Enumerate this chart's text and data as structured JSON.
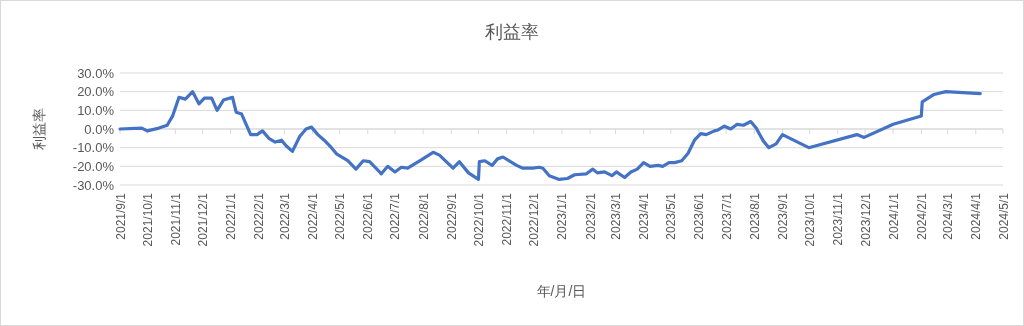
{
  "chart_data": {
    "type": "line",
    "title": "利益率",
    "xlabel": "年/月/日",
    "ylabel": "利益率",
    "x": [
      "2021-09-01",
      "2021-09-25",
      "2021-10-01",
      "2021-10-14",
      "2021-10-23",
      "2021-10-29",
      "2021-11-05",
      "2021-11-12",
      "2021-11-20",
      "2021-11-27",
      "2021-12-03",
      "2021-12-11",
      "2021-12-17",
      "2021-12-24",
      "2022-01-03",
      "2022-01-07",
      "2022-01-13",
      "2022-01-23",
      "2022-01-30",
      "2022-02-05",
      "2022-02-12",
      "2022-02-19",
      "2022-02-26",
      "2022-03-03",
      "2022-03-10",
      "2022-03-18",
      "2022-03-25",
      "2022-03-31",
      "2022-04-07",
      "2022-04-14",
      "2022-04-22",
      "2022-04-28",
      "2022-05-10",
      "2022-05-19",
      "2022-05-27",
      "2022-06-03",
      "2022-06-10",
      "2022-06-16",
      "2022-06-23",
      "2022-07-01",
      "2022-07-08",
      "2022-07-15",
      "2022-07-30",
      "2022-08-12",
      "2022-08-19",
      "2022-09-03",
      "2022-09-10",
      "2022-09-20",
      "2022-10-01",
      "2022-10-02",
      "2022-10-08",
      "2022-10-16",
      "2022-10-22",
      "2022-10-28",
      "2022-11-12",
      "2022-11-19",
      "2022-11-30",
      "2022-12-07",
      "2022-12-11",
      "2022-12-18",
      "2022-12-29",
      "2023-01-07",
      "2023-01-15",
      "2023-01-28",
      "2023-02-04",
      "2023-02-09",
      "2023-02-17",
      "2023-02-25",
      "2023-03-02",
      "2023-03-11",
      "2023-03-18",
      "2023-03-25",
      "2023-04-01",
      "2023-04-08",
      "2023-04-17",
      "2023-04-22",
      "2023-04-29",
      "2023-05-05",
      "2023-05-13",
      "2023-05-20",
      "2023-05-27",
      "2023-06-03",
      "2023-06-09",
      "2023-06-18",
      "2023-06-22",
      "2023-06-29",
      "2023-07-06",
      "2023-07-13",
      "2023-07-20",
      "2023-07-28",
      "2023-08-03",
      "2023-08-11",
      "2023-08-17",
      "2023-08-25",
      "2023-09-01",
      "2023-09-30",
      "2023-11-22",
      "2023-11-30",
      "2024-01-01",
      "2024-02-01",
      "2024-02-02",
      "2024-02-15",
      "2024-02-28",
      "2024-04-06"
    ],
    "series": [
      {
        "color": "#4472c4",
        "values": [
          0,
          0.5,
          -1,
          0.5,
          2,
          7,
          17,
          16,
          20,
          13.5,
          16.5,
          16.5,
          10,
          15.5,
          17,
          9,
          8,
          -3,
          -3,
          -1,
          -5,
          -7,
          -6,
          -9,
          -12,
          -4,
          0,
          1,
          -3,
          -6,
          -10,
          -13.5,
          -17,
          -21.5,
          -17,
          -17.5,
          -21,
          -24,
          -20,
          -23,
          -20.5,
          -21,
          -16.5,
          -12.5,
          -14,
          -21,
          -17.5,
          -23.5,
          -27,
          -17.5,
          -17,
          -19.5,
          -16,
          -15,
          -19.5,
          -21,
          -21,
          -20.5,
          -21,
          -25,
          -27,
          -26.5,
          -24.5,
          -24,
          -21.5,
          -23.5,
          -23,
          -25,
          -23,
          -26,
          -23,
          -21.5,
          -18,
          -20,
          -19.5,
          -20,
          -18,
          -18,
          -17,
          -13,
          -6,
          -2.5,
          -3,
          -1,
          -0.5,
          1.5,
          0,
          2.5,
          2,
          4,
          0.5,
          -6.5,
          -10,
          -8,
          -3,
          -10,
          -3,
          -4.5,
          2.5,
          7,
          14.5,
          18.5,
          20,
          19
        ]
      }
    ],
    "xlim": [
      "2021-09-01",
      "2024-05-01"
    ],
    "xticks": [
      {
        "value": "2021-09-01",
        "label": "2021/9/1"
      },
      {
        "value": "2021-10-01",
        "label": "2021/10/1"
      },
      {
        "value": "2021-11-01",
        "label": "2021/11/1"
      },
      {
        "value": "2021-12-01",
        "label": "2021/12/1"
      },
      {
        "value": "2022-01-01",
        "label": "2022/1/1"
      },
      {
        "value": "2022-02-01",
        "label": "2022/2/1"
      },
      {
        "value": "2022-03-01",
        "label": "2022/3/1"
      },
      {
        "value": "2022-04-01",
        "label": "2022/4/1"
      },
      {
        "value": "2022-05-01",
        "label": "2022/5/1"
      },
      {
        "value": "2022-06-01",
        "label": "2022/6/1"
      },
      {
        "value": "2022-07-01",
        "label": "2022/7/1"
      },
      {
        "value": "2022-08-01",
        "label": "2022/8/1"
      },
      {
        "value": "2022-09-01",
        "label": "2022/9/1"
      },
      {
        "value": "2022-10-01",
        "label": "2022/10/1"
      },
      {
        "value": "2022-11-01",
        "label": "2022/11/1"
      },
      {
        "value": "2022-12-01",
        "label": "2022/12/1"
      },
      {
        "value": "2023-01-01",
        "label": "2023/1/1"
      },
      {
        "value": "2023-02-01",
        "label": "2023/2/1"
      },
      {
        "value": "2023-03-01",
        "label": "2023/3/1"
      },
      {
        "value": "2023-04-01",
        "label": "2023/4/1"
      },
      {
        "value": "2023-05-01",
        "label": "2023/5/1"
      },
      {
        "value": "2023-06-01",
        "label": "2023/6/1"
      },
      {
        "value": "2023-07-01",
        "label": "2023/7/1"
      },
      {
        "value": "2023-08-01",
        "label": "2023/8/1"
      },
      {
        "value": "2023-09-01",
        "label": "2023/9/1"
      },
      {
        "value": "2023-10-01",
        "label": "2023/10/1"
      },
      {
        "value": "2023-11-01",
        "label": "2023/11/1"
      },
      {
        "value": "2023-12-01",
        "label": "2023/12/1"
      },
      {
        "value": "2024-01-01",
        "label": "2024/1/1"
      },
      {
        "value": "2024-02-01",
        "label": "2024/2/1"
      },
      {
        "value": "2024-03-01",
        "label": "2024/3/1"
      },
      {
        "value": "2024-04-01",
        "label": "2024/4/1"
      },
      {
        "value": "2024-05-01",
        "label": "2024/5/1"
      }
    ],
    "ylim": [
      -30,
      30
    ],
    "yticks": [
      {
        "value": -30,
        "label": "-30.0%"
      },
      {
        "value": -20,
        "label": "-20.0%"
      },
      {
        "value": -10,
        "label": "-10.0%"
      },
      {
        "value": 0,
        "label": "0.0%"
      },
      {
        "value": 10,
        "label": "10.0%"
      },
      {
        "value": 20,
        "label": "20.0%"
      },
      {
        "value": 30,
        "label": "30.0%"
      }
    ],
    "grid": "y",
    "marker": "none",
    "line_style": "solid"
  }
}
